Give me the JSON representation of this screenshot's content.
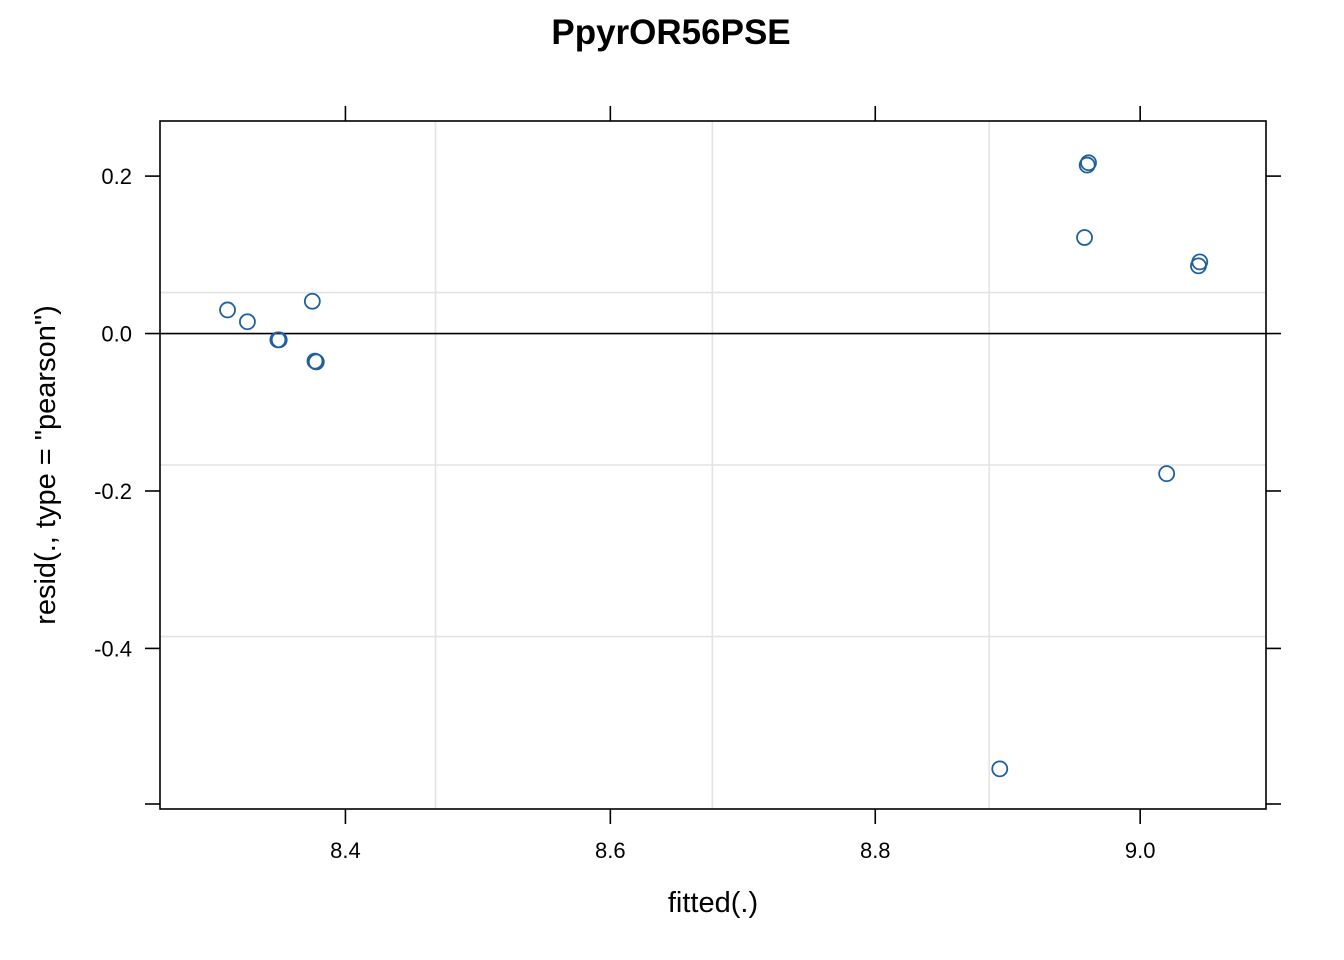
{
  "chart_data": {
    "type": "scatter",
    "title": "PpyrOR56PSE",
    "xlabel": "fitted(.)",
    "ylabel": "resid(., type = \"pearson\")",
    "xlim": [
      8.26,
      9.095
    ],
    "ylim": [
      -0.604,
      0.27
    ],
    "x_ticks": [
      8.4,
      8.6,
      8.8,
      9.0
    ],
    "x_tick_labels": [
      "8.4",
      "8.6",
      "8.8",
      "9.0"
    ],
    "y_ticks": [
      -0.4,
      -0.2,
      0.0,
      0.2
    ],
    "y_tick_labels": [
      "-0.4",
      "-0.2",
      "0.0",
      "0.2"
    ],
    "x_gridlines": [
      8.468,
      8.677,
      8.886
    ],
    "y_gridlines": [
      -0.385,
      -0.167,
      0.052
    ],
    "reference_line_y": 0.0,
    "grid": true,
    "point_color": "#1f5f9f",
    "series": [
      {
        "points": [
          {
            "x": 8.311,
            "y": 0.03
          },
          {
            "x": 8.326,
            "y": 0.015
          },
          {
            "x": 8.349,
            "y": -0.008
          },
          {
            "x": 8.35,
            "y": -0.008
          },
          {
            "x": 8.375,
            "y": 0.041
          },
          {
            "x": 8.377,
            "y": -0.035
          },
          {
            "x": 8.378,
            "y": -0.036
          },
          {
            "x": 8.894,
            "y": -0.553
          },
          {
            "x": 8.958,
            "y": 0.122
          },
          {
            "x": 8.96,
            "y": 0.214
          },
          {
            "x": 8.961,
            "y": 0.217
          },
          {
            "x": 9.02,
            "y": -0.178
          },
          {
            "x": 9.044,
            "y": 0.086
          },
          {
            "x": 9.045,
            "y": 0.091
          }
        ]
      }
    ]
  }
}
